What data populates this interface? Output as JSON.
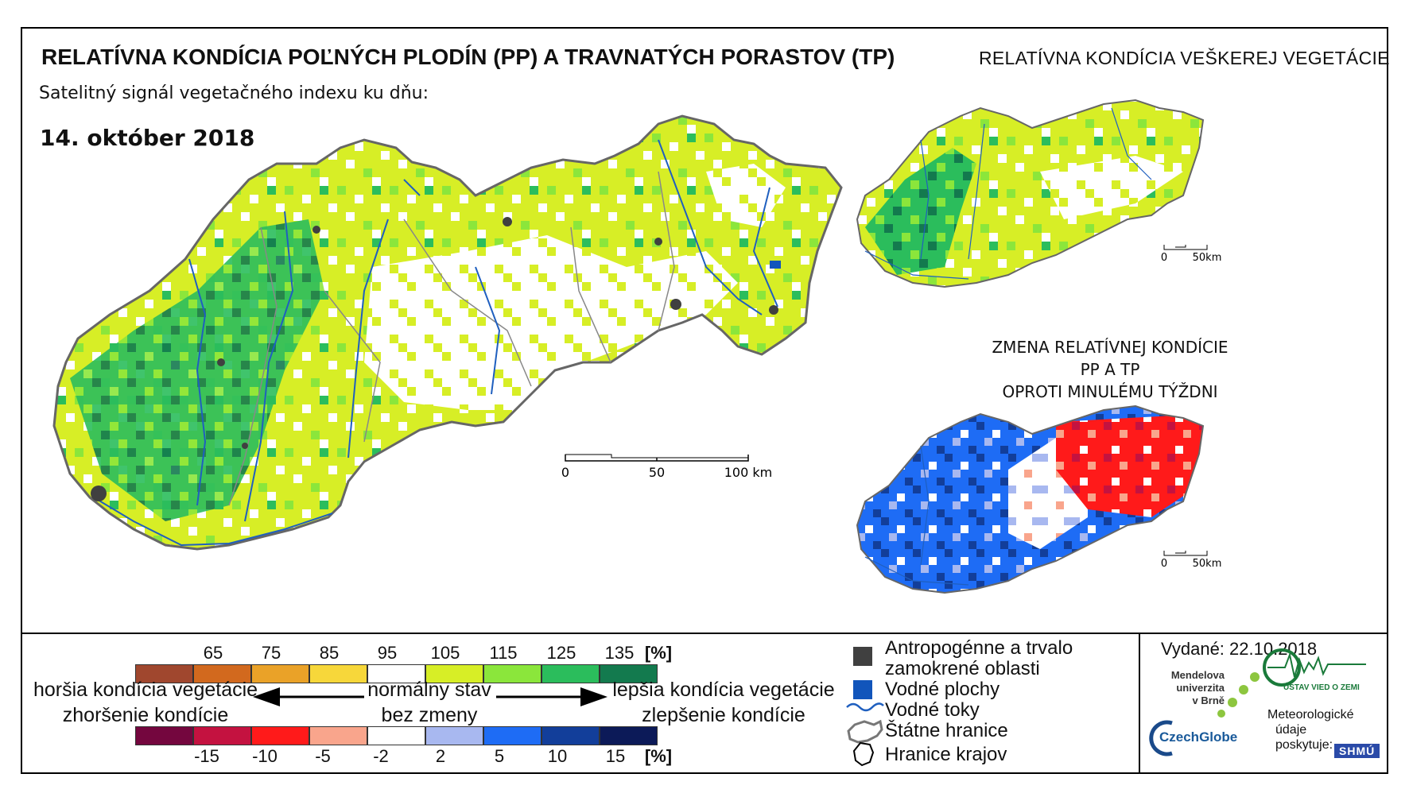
{
  "title": "RELATÍVNA KONDÍCIA POĽNÝCH PLODÍN (PP) A TRAVNATÝCH PORASTOV (TP)",
  "subtitle": "Satelitný signál vegetačného indexu ku dňu:",
  "date": "14. október 2018",
  "inset_top_title": "RELATÍVNA KONDÍCIA VEŠKEREJ VEGETÁCIE",
  "inset_bottom_title_line1": "ZMENA RELATÍVNEJ KONDÍCIE PP A TP",
  "inset_bottom_title_line2": "OPROTI MINULÉMU TÝŽDNI",
  "main_scalebar": {
    "labels": [
      "0",
      "50",
      "100 km"
    ]
  },
  "inset_scalebar": {
    "labels": [
      "0",
      "50km"
    ]
  },
  "condition_scale": {
    "unit": "[%]",
    "ticks": [
      "65",
      "75",
      "85",
      "95",
      "105",
      "115",
      "125",
      "135"
    ],
    "colors": [
      "#a0472e",
      "#d2691e",
      "#eaa228",
      "#f7d73a",
      "#ffffff",
      "#d7ee26",
      "#8be63b",
      "#2bbd5c",
      "#137a4e"
    ]
  },
  "change_scale": {
    "unit": "[%]",
    "ticks": [
      "-15",
      "-10",
      "-5",
      "-2",
      "2",
      "5",
      "10",
      "15"
    ],
    "colors": [
      "#74063e",
      "#c41240",
      "#ff1a1a",
      "#f9a58c",
      "#ffffff",
      "#a8b8f0",
      "#1e6cf5",
      "#123e9a",
      "#0c1a58"
    ]
  },
  "descriptions": {
    "worse": "horšia kondícia vegetácie",
    "worsening": "zhoršenie kondície",
    "normal": "normálny stav",
    "no_change": "bez zmeny",
    "better": "lepšia kondícia vegetácie",
    "improvement": "zlepšenie kondície"
  },
  "legend": {
    "anthropogenic_line1": "Antropogénne a trvalo",
    "anthropogenic_line2": "zamokrené oblasti",
    "water_bodies": "Vodné plochy",
    "water_streams": "Vodné toky",
    "state_border": "Štátne hranice",
    "region_border": "Hranice krajov"
  },
  "issued": "Vydané: 22.10.2018",
  "logos": {
    "mendel_line1": "Mendelova",
    "mendel_line2": "univerzita",
    "mendel_line3": "v Brně",
    "czechglobe": "CzechGlobe",
    "institute": "ÚSTAV VIED O ZEMI",
    "meteo_line1": "Meteorologické",
    "meteo_line2": "údaje",
    "meteo_line3": "poskytuje:",
    "shmu": "SHMÚ"
  },
  "colors": {
    "anthropogenic": "#404040",
    "water": "#1155bb",
    "river": "#1f5fbf",
    "border": "#777777"
  }
}
